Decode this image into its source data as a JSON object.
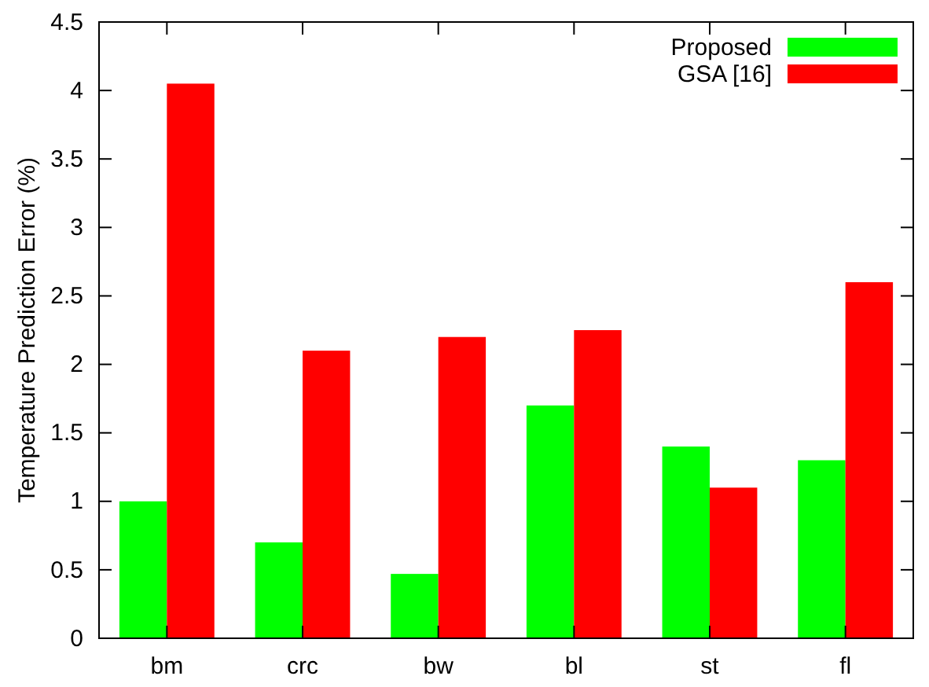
{
  "chart_data": {
    "type": "bar",
    "ylabel": "Temperature Prediction Error (%)",
    "categories": [
      "bm",
      "crc",
      "bw",
      "bl",
      "st",
      "fl"
    ],
    "series": [
      {
        "name": "Proposed",
        "color": "#00ff00",
        "values": [
          1.0,
          0.7,
          0.47,
          1.7,
          1.4,
          1.3
        ]
      },
      {
        "name": "GSA [16]",
        "color": "#ff0000",
        "values": [
          4.05,
          2.1,
          2.2,
          2.25,
          1.1,
          2.6
        ]
      }
    ],
    "ylim": [
      0,
      4.5
    ],
    "yticks": [
      0,
      0.5,
      1,
      1.5,
      2,
      2.5,
      3,
      3.5,
      4,
      4.5
    ],
    "legend": "top right",
    "grid": false
  }
}
